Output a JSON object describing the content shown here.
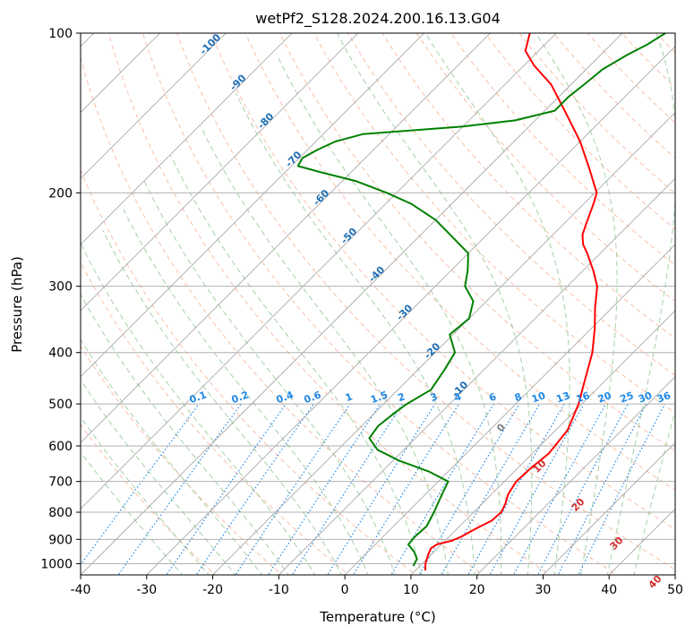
{
  "chart_data": {
    "type": "line",
    "title": "wetPf2_S128.2024.200.16.13.G04",
    "xlabel": "Temperature (°C)",
    "ylabel": "Pressure (hPa)",
    "xlim": [
      -40,
      50
    ],
    "ylim": [
      1050,
      100
    ],
    "y_scale": "log",
    "x_ticks": [
      "-40",
      "-30",
      "-20",
      "-10",
      "0",
      "10",
      "20",
      "30",
      "40",
      "50"
    ],
    "y_ticks": [
      "100",
      "200",
      "300",
      "400",
      "500",
      "600",
      "700",
      "800",
      "900",
      "1000"
    ],
    "grid": true,
    "skew_deg": 45,
    "colors": {
      "temperature": "#ff0000",
      "dewpoint": "#008000",
      "isotherm": "#a0a0a0",
      "dry_adiabat": "#f4a582",
      "moist_adiabat": "#8fc58f",
      "mixing_ratio": "#1e88e5",
      "isotherm_label": "#1f6fb5",
      "dry_adiabat_label": "#d32f2f"
    },
    "series": [
      {
        "id": "temperature",
        "color": "#ff0000",
        "points": [
          {
            "p": 1030,
            "t": 11.5
          },
          {
            "p": 1000,
            "t": 10.5
          },
          {
            "p": 960,
            "t": 9.5
          },
          {
            "p": 935,
            "t": 9.0
          },
          {
            "p": 920,
            "t": 9.3
          },
          {
            "p": 905,
            "t": 11.0
          },
          {
            "p": 890,
            "t": 11.8
          },
          {
            "p": 860,
            "t": 12.8
          },
          {
            "p": 830,
            "t": 14.0
          },
          {
            "p": 800,
            "t": 14.2
          },
          {
            "p": 770,
            "t": 13.5
          },
          {
            "p": 740,
            "t": 12.5
          },
          {
            "p": 700,
            "t": 11.8
          },
          {
            "p": 660,
            "t": 12.0
          },
          {
            "p": 620,
            "t": 12.5
          },
          {
            "p": 560,
            "t": 11.8
          },
          {
            "p": 500,
            "t": 9.5
          },
          {
            "p": 450,
            "t": 6.8
          },
          {
            "p": 400,
            "t": 3.8
          },
          {
            "p": 360,
            "t": 0.5
          },
          {
            "p": 330,
            "t": -2.5
          },
          {
            "p": 300,
            "t": -5.5
          },
          {
            "p": 280,
            "t": -8.5
          },
          {
            "p": 260,
            "t": -12.0
          },
          {
            "p": 250,
            "t": -14.0
          },
          {
            "p": 240,
            "t": -15.5
          },
          {
            "p": 230,
            "t": -16.5
          },
          {
            "p": 210,
            "t": -18.5
          },
          {
            "p": 200,
            "t": -19.7
          },
          {
            "p": 180,
            "t": -24.5
          },
          {
            "p": 160,
            "t": -30.0
          },
          {
            "p": 140,
            "t": -37.0
          },
          {
            "p": 125,
            "t": -43.0
          },
          {
            "p": 115,
            "t": -48.5
          },
          {
            "p": 108,
            "t": -52.0
          },
          {
            "p": 100,
            "t": -54.0
          }
        ]
      },
      {
        "id": "dewpoint",
        "color": "#008000",
        "points": [
          {
            "p": 1010,
            "t": 9.0
          },
          {
            "p": 980,
            "t": 8.5
          },
          {
            "p": 950,
            "t": 7.0
          },
          {
            "p": 920,
            "t": 5.0
          },
          {
            "p": 890,
            "t": 4.8
          },
          {
            "p": 850,
            "t": 5.0
          },
          {
            "p": 800,
            "t": 4.0
          },
          {
            "p": 740,
            "t": 2.5
          },
          {
            "p": 700,
            "t": 1.5
          },
          {
            "p": 670,
            "t": -3.0
          },
          {
            "p": 640,
            "t": -9.0
          },
          {
            "p": 610,
            "t": -14.0
          },
          {
            "p": 580,
            "t": -17.0
          },
          {
            "p": 550,
            "t": -17.5
          },
          {
            "p": 520,
            "t": -17.0
          },
          {
            "p": 500,
            "t": -16.5
          },
          {
            "p": 470,
            "t": -15.0
          },
          {
            "p": 430,
            "t": -16.0
          },
          {
            "p": 400,
            "t": -17.0
          },
          {
            "p": 370,
            "t": -20.5
          },
          {
            "p": 345,
            "t": -20.0
          },
          {
            "p": 320,
            "t": -22.0
          },
          {
            "p": 300,
            "t": -25.5
          },
          {
            "p": 280,
            "t": -27.5
          },
          {
            "p": 260,
            "t": -30.0
          },
          {
            "p": 240,
            "t": -35.5
          },
          {
            "p": 225,
            "t": -40.0
          },
          {
            "p": 210,
            "t": -46.0
          },
          {
            "p": 200,
            "t": -51.5
          },
          {
            "p": 190,
            "t": -58.0
          },
          {
            "p": 183,
            "t": -64.5
          },
          {
            "p": 178,
            "t": -69.0
          },
          {
            "p": 172,
            "t": -69.5
          },
          {
            "p": 166,
            "t": -68.5
          },
          {
            "p": 160,
            "t": -67.0
          },
          {
            "p": 155,
            "t": -64.0
          },
          {
            "p": 150,
            "t": -50.0
          },
          {
            "p": 146,
            "t": -43.0
          },
          {
            "p": 140,
            "t": -38.5
          },
          {
            "p": 132,
            "t": -38.5
          },
          {
            "p": 125,
            "t": -38.0
          },
          {
            "p": 117,
            "t": -37.5
          },
          {
            "p": 110,
            "t": -36.0
          },
          {
            "p": 105,
            "t": -34.5
          },
          {
            "p": 100,
            "t": -33.5
          }
        ]
      }
    ],
    "isotherm_labels": [
      "-100",
      "-90",
      "-80",
      "-70",
      "-60",
      "-50",
      "-40",
      "-30",
      "-20",
      "-10"
    ],
    "mixing_ratio_labels": [
      "0.1",
      "0.2",
      "0.4",
      "0.6",
      "1",
      "1.5",
      "2",
      "3",
      "4",
      "6",
      "8",
      "10",
      "13",
      "16",
      "20",
      "25",
      "30",
      "36"
    ],
    "dry_adiabat_labels": [
      "0",
      "10",
      "20",
      "30",
      "40"
    ]
  }
}
